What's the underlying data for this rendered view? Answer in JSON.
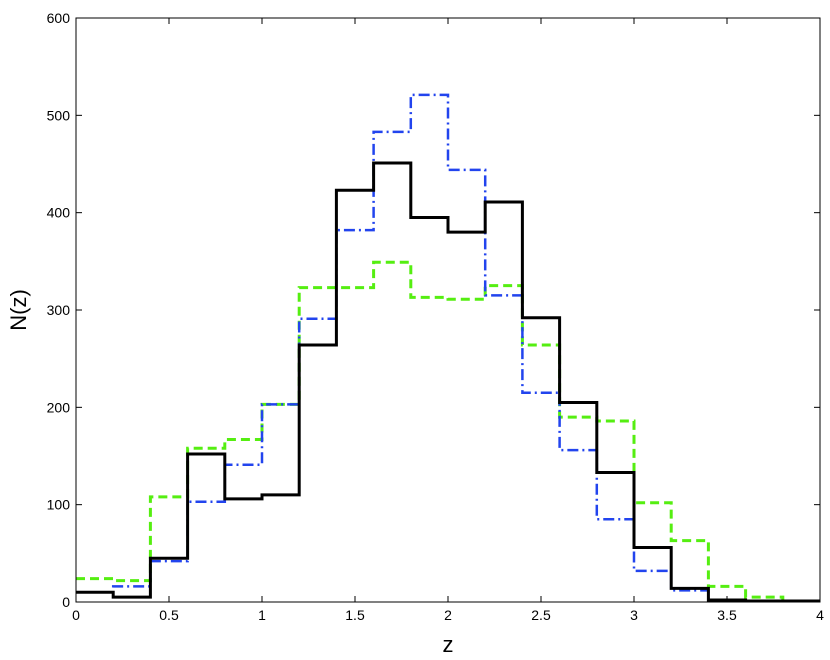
{
  "chart_data": {
    "type": "line",
    "title": "",
    "xlabel": "z",
    "ylabel": "N(z)",
    "xlim": [
      0,
      4
    ],
    "ylim": [
      0,
      600
    ],
    "xticks": [
      0,
      0.5,
      1,
      1.5,
      2,
      2.5,
      3,
      3.5,
      4
    ],
    "xtick_labels": [
      "0",
      "0.5",
      "1",
      "1.5",
      "2",
      "2.5",
      "3",
      "3.5",
      "4"
    ],
    "yticks": [
      0,
      100,
      200,
      300,
      400,
      500,
      600
    ],
    "ytick_labels": [
      "0",
      "100",
      "200",
      "300",
      "400",
      "500",
      "600"
    ],
    "grid": false,
    "bin_edges": [
      0,
      0.2,
      0.4,
      0.6,
      0.8,
      1.0,
      1.2,
      1.4,
      1.6,
      1.8,
      2.0,
      2.2,
      2.4,
      2.6,
      2.8,
      3.0,
      3.2,
      3.4,
      3.6,
      3.8,
      4.0
    ],
    "series": [
      {
        "style": "solid",
        "color": "#000000",
        "values": [
          10,
          5,
          45,
          152,
          106,
          110,
          264,
          423,
          451,
          395,
          380,
          411,
          292,
          205,
          133,
          56,
          14,
          2,
          1,
          1
        ]
      },
      {
        "style": "dashed",
        "color": "#55ee11",
        "values": [
          24,
          22,
          108,
          158,
          167,
          203,
          323,
          323,
          349,
          313,
          311,
          325,
          264,
          190,
          186,
          102,
          63,
          16,
          5,
          1
        ]
      },
      {
        "style": "dashdot",
        "color": "#2244ee",
        "values": [
          10,
          16,
          42,
          103,
          141,
          203,
          291,
          382,
          483,
          521,
          444,
          315,
          215,
          156,
          85,
          32,
          12,
          2,
          1,
          1
        ]
      }
    ]
  }
}
